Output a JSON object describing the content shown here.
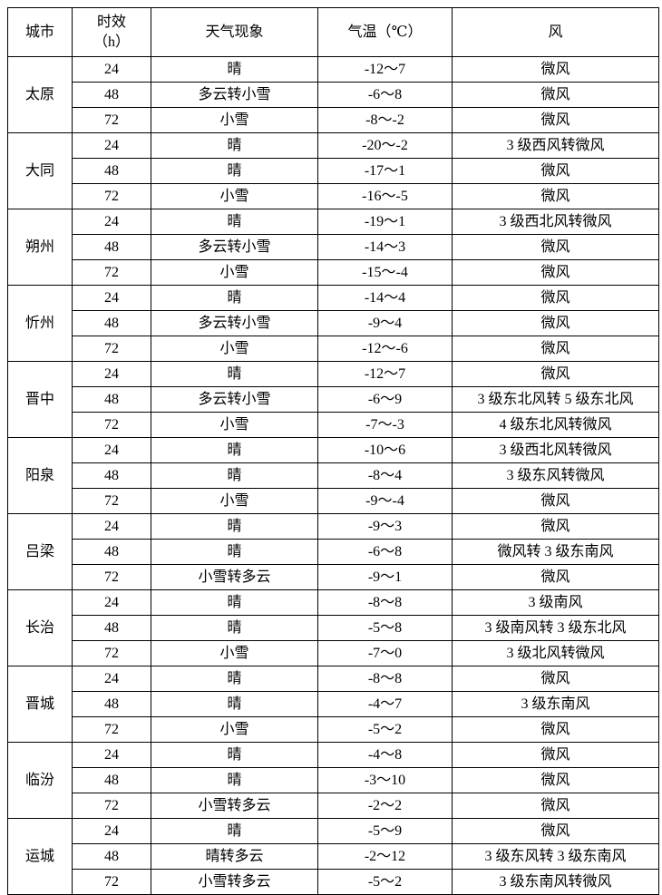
{
  "header": {
    "city": "城市",
    "period_line1": "时效",
    "period_line2": "（h）",
    "weather": "天气现象",
    "temperature": "气温（℃）",
    "wind": "风"
  },
  "cities": [
    {
      "name": "太原",
      "rows": [
        {
          "hours": "24",
          "weather": "晴",
          "temp": "-12～7",
          "wind": "微风"
        },
        {
          "hours": "48",
          "weather": "多云转小雪",
          "temp": "-6～8",
          "wind": "微风"
        },
        {
          "hours": "72",
          "weather": "小雪",
          "temp": "-8～-2",
          "wind": "微风"
        }
      ]
    },
    {
      "name": "大同",
      "rows": [
        {
          "hours": "24",
          "weather": "晴",
          "temp": "-20～-2",
          "wind": "3 级西风转微风"
        },
        {
          "hours": "48",
          "weather": "晴",
          "temp": "-17～1",
          "wind": "微风"
        },
        {
          "hours": "72",
          "weather": "小雪",
          "temp": "-16～-5",
          "wind": "微风"
        }
      ]
    },
    {
      "name": "朔州",
      "rows": [
        {
          "hours": "24",
          "weather": "晴",
          "temp": "-19～1",
          "wind": "3 级西北风转微风"
        },
        {
          "hours": "48",
          "weather": "多云转小雪",
          "temp": "-14～3",
          "wind": "微风"
        },
        {
          "hours": "72",
          "weather": "小雪",
          "temp": "-15～-4",
          "wind": "微风"
        }
      ]
    },
    {
      "name": "忻州",
      "rows": [
        {
          "hours": "24",
          "weather": "晴",
          "temp": "-14～4",
          "wind": "微风"
        },
        {
          "hours": "48",
          "weather": "多云转小雪",
          "temp": "-9～4",
          "wind": "微风"
        },
        {
          "hours": "72",
          "weather": "小雪",
          "temp": "-12～-6",
          "wind": "微风"
        }
      ]
    },
    {
      "name": "晋中",
      "rows": [
        {
          "hours": "24",
          "weather": "晴",
          "temp": "-12～7",
          "wind": "微风"
        },
        {
          "hours": "48",
          "weather": "多云转小雪",
          "temp": "-6～9",
          "wind": "3 级东北风转 5 级东北风"
        },
        {
          "hours": "72",
          "weather": "小雪",
          "temp": "-7～-3",
          "wind": "4 级东北风转微风"
        }
      ]
    },
    {
      "name": "阳泉",
      "rows": [
        {
          "hours": "24",
          "weather": "晴",
          "temp": "-10～6",
          "wind": "3 级西北风转微风"
        },
        {
          "hours": "48",
          "weather": "晴",
          "temp": "-8～4",
          "wind": "3 级东风转微风"
        },
        {
          "hours": "72",
          "weather": "小雪",
          "temp": "-9～-4",
          "wind": "微风"
        }
      ]
    },
    {
      "name": "吕梁",
      "rows": [
        {
          "hours": "24",
          "weather": "晴",
          "temp": "-9～3",
          "wind": "微风"
        },
        {
          "hours": "48",
          "weather": "晴",
          "temp": "-6～8",
          "wind": "微风转 3 级东南风"
        },
        {
          "hours": "72",
          "weather": "小雪转多云",
          "temp": "-9～1",
          "wind": "微风"
        }
      ]
    },
    {
      "name": "长治",
      "rows": [
        {
          "hours": "24",
          "weather": "晴",
          "temp": "-8～8",
          "wind": "3 级南风"
        },
        {
          "hours": "48",
          "weather": "晴",
          "temp": "-5～8",
          "wind": "3 级南风转 3 级东北风"
        },
        {
          "hours": "72",
          "weather": "小雪",
          "temp": "-7～0",
          "wind": "3 级北风转微风"
        }
      ]
    },
    {
      "name": "晋城",
      "rows": [
        {
          "hours": "24",
          "weather": "晴",
          "temp": "-8～8",
          "wind": "微风"
        },
        {
          "hours": "48",
          "weather": "晴",
          "temp": "-4～7",
          "wind": "3 级东南风"
        },
        {
          "hours": "72",
          "weather": "小雪",
          "temp": "-5～2",
          "wind": "微风"
        }
      ]
    },
    {
      "name": "临汾",
      "rows": [
        {
          "hours": "24",
          "weather": "晴",
          "temp": "-4～8",
          "wind": "微风"
        },
        {
          "hours": "48",
          "weather": "晴",
          "temp": "-3～10",
          "wind": "微风"
        },
        {
          "hours": "72",
          "weather": "小雪转多云",
          "temp": "-2～2",
          "wind": "微风"
        }
      ]
    },
    {
      "name": "运城",
      "rows": [
        {
          "hours": "24",
          "weather": "晴",
          "temp": "-5～9",
          "wind": "微风"
        },
        {
          "hours": "48",
          "weather": "晴转多云",
          "temp": "-2～12",
          "wind": "3 级东风转 3 级东南风"
        },
        {
          "hours": "72",
          "weather": "小雪转多云",
          "temp": "-5～2",
          "wind": "3 级东南风转微风"
        }
      ]
    }
  ]
}
